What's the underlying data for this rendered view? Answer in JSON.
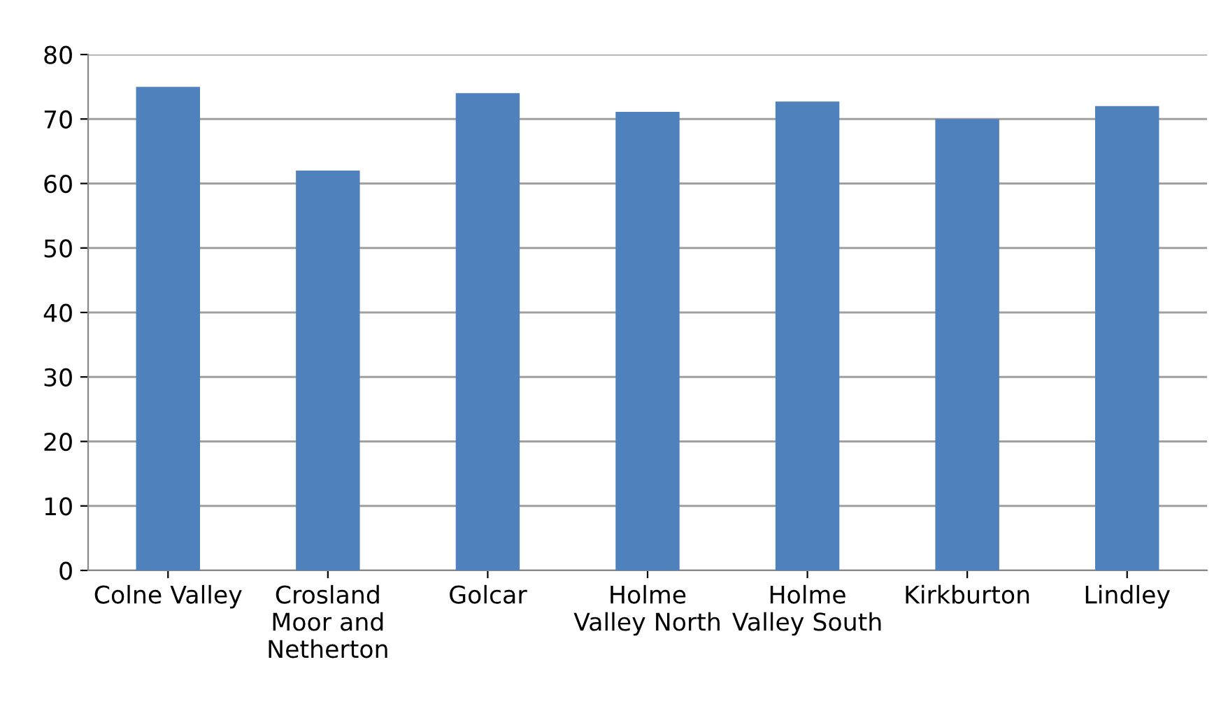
{
  "chart_data": {
    "type": "bar",
    "categories": [
      "Colne Valley",
      "Crosland\nMoor and\nNetherton",
      "Golcar",
      "Holme\nValley North",
      "Holme\nValley South",
      "Kirkburton",
      "Lindley"
    ],
    "values": [
      75,
      62,
      74,
      71.1,
      72.7,
      70,
      72
    ],
    "color": "#4f81bd",
    "ylim": [
      0,
      80
    ],
    "yticks": [
      0,
      10,
      20,
      30,
      40,
      50,
      60,
      70,
      80
    ],
    "grid": "y"
  }
}
